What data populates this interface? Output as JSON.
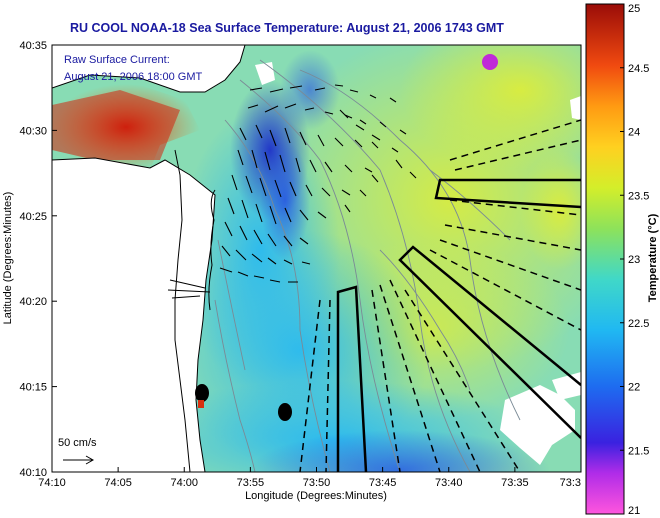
{
  "title": "RU COOL  NOAA-18  Sea Surface Temperature:  August 21, 2006 1743 GMT",
  "annotation": {
    "line1": "Raw Surface Current:",
    "line2": "August 21, 2006 18:00 GMT"
  },
  "scale": {
    "label": "50 cm/s"
  },
  "axes": {
    "x_label": "Longitude (Degrees:Minutes)",
    "y_label": "Latitude (Degrees:Minutes)",
    "x_ticks": [
      "74:10",
      "74:05",
      "74:00",
      "73:55",
      "73:50",
      "73:45",
      "73:40",
      "73:35",
      "73:3"
    ],
    "y_ticks": [
      "40:35",
      "40:30",
      "40:25",
      "40:20",
      "40:15",
      "40:10"
    ]
  },
  "colorbar": {
    "label": "Temperature (°C)",
    "ticks": [
      "25",
      "24.5",
      "24",
      "23.5",
      "23",
      "22.5",
      "22",
      "21.5",
      "21"
    ],
    "min": 21,
    "max": 25,
    "colors": [
      "#ff55dd",
      "#7a1ee0",
      "#1e2ee8",
      "#1fa8f0",
      "#3cd4d8",
      "#7ee06a",
      "#d8ee2a",
      "#ffd21e",
      "#ff8a12",
      "#e83010",
      "#9a0c08"
    ]
  },
  "legend_colors": {
    "land": "#ffffff",
    "coast": "#000000",
    "bathymetry": "#7a8a96",
    "text_blue": "#1a1aa0"
  }
}
